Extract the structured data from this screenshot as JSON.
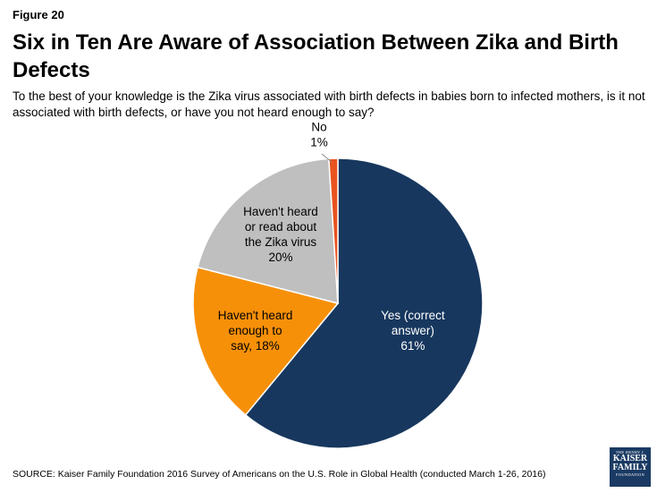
{
  "figure_label": "Figure 20",
  "title": "Six in Ten Are Aware of Association Between Zika and Birth Defects",
  "subtitle": "To the best of your knowledge is the Zika virus associated with birth defects in babies born to infected mothers, is it not associated with birth defects, or have you not heard enough to say?",
  "source": "SOURCE: Kaiser Family Foundation 2016 Survey of Americans on the U.S. Role in Global Health (conducted March 1-26, 2016)",
  "logo": {
    "top": "THE HENRY J.",
    "line1": "KAISER",
    "line2": "FAMILY",
    "bottom": "FOUNDATION"
  },
  "chart_data": {
    "type": "pie",
    "start": "12 o'clock, clockwise",
    "slices": [
      {
        "label_lines": [
          "Yes (correct",
          "answer)",
          "61%"
        ],
        "value": 61,
        "color": "#17375e",
        "text_color": "#ffffff"
      },
      {
        "label_lines": [
          "Haven't heard",
          "enough to",
          "say, 18%"
        ],
        "value": 18,
        "color": "#f79009",
        "text_color": "#000000"
      },
      {
        "label_lines": [
          "Haven't heard",
          "or read about",
          "the Zika virus",
          "20%"
        ],
        "value": 20,
        "color": "#bfbfbf",
        "text_color": "#000000"
      },
      {
        "label_lines": [
          "No",
          "1%"
        ],
        "value": 1,
        "color": "#e8541f",
        "text_color": "#000000",
        "label_position": "outside"
      }
    ]
  }
}
